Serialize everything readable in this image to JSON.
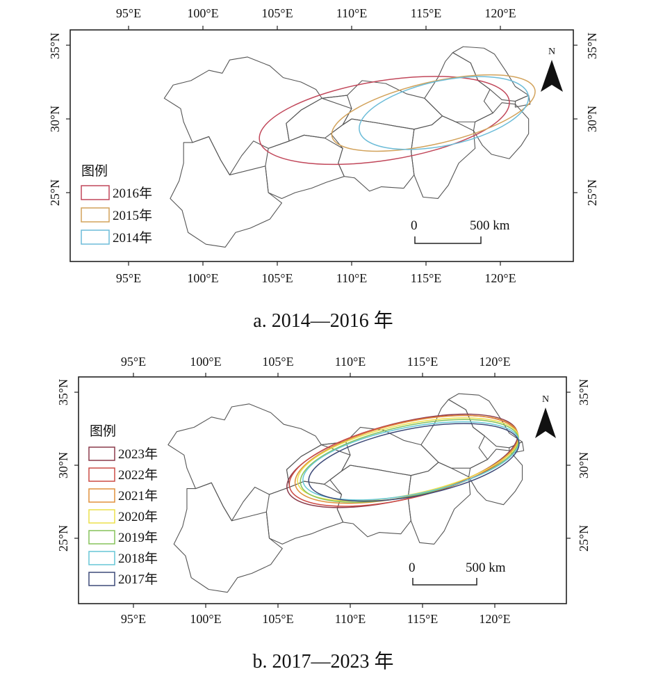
{
  "panels": [
    {
      "caption": "a. 2014—2016 年",
      "legend_title": "图例",
      "scale": {
        "zero": "0",
        "dist": "500 km"
      },
      "north": "N",
      "lon_labels": [
        "95°E",
        "100°E",
        "105°E",
        "110°E",
        "115°E",
        "120°E"
      ],
      "lat_labels": [
        "35°N",
        "30°N",
        "25°N"
      ],
      "series": [
        {
          "name": "2016年",
          "color": "#c1475a",
          "cx": 112.2,
          "cy": 29.9,
          "rx": 8.5,
          "ry": 2.7,
          "rot": 9
        },
        {
          "name": "2015年",
          "color": "#d2a25a",
          "cx": 115.5,
          "cy": 30.4,
          "rx": 7.0,
          "ry": 2.1,
          "rot": 13
        },
        {
          "name": "2014年",
          "color": "#6cbcd8",
          "cx": 116.2,
          "cy": 30.4,
          "rx": 5.8,
          "ry": 2.2,
          "rot": 12
        }
      ]
    },
    {
      "caption": "b. 2017—2023 年",
      "legend_title": "图例",
      "scale": {
        "zero": "0",
        "dist": "500 km"
      },
      "north": "N",
      "lon_labels": [
        "95°E",
        "100°E",
        "105°E",
        "110°E",
        "115°E",
        "120°E"
      ],
      "lat_labels": [
        "35°N",
        "30°N",
        "25°N"
      ],
      "series": [
        {
          "name": "2023年",
          "color": "#8a3a4a",
          "cx": 113.6,
          "cy": 30.3,
          "rx": 8.2,
          "ry": 2.6,
          "rot": 14
        },
        {
          "name": "2022年",
          "color": "#cc4a44",
          "cx": 113.7,
          "cy": 30.3,
          "rx": 8.1,
          "ry": 2.6,
          "rot": 13
        },
        {
          "name": "2021年",
          "color": "#e0913c",
          "cx": 113.9,
          "cy": 30.4,
          "rx": 7.9,
          "ry": 2.5,
          "rot": 13
        },
        {
          "name": "2020年",
          "color": "#ece04a",
          "cx": 114.0,
          "cy": 30.4,
          "rx": 7.8,
          "ry": 2.4,
          "rot": 12
        },
        {
          "name": "2019年",
          "color": "#86c25a",
          "cx": 114.1,
          "cy": 30.3,
          "rx": 7.7,
          "ry": 2.4,
          "rot": 12
        },
        {
          "name": "2018年",
          "color": "#66c6d6",
          "cx": 114.2,
          "cy": 30.3,
          "rx": 7.6,
          "ry": 2.3,
          "rot": 11
        },
        {
          "name": "2017年",
          "color": "#3d4a78",
          "cx": 114.4,
          "cy": 30.2,
          "rx": 7.4,
          "ry": 2.3,
          "rot": 11
        }
      ]
    }
  ]
}
